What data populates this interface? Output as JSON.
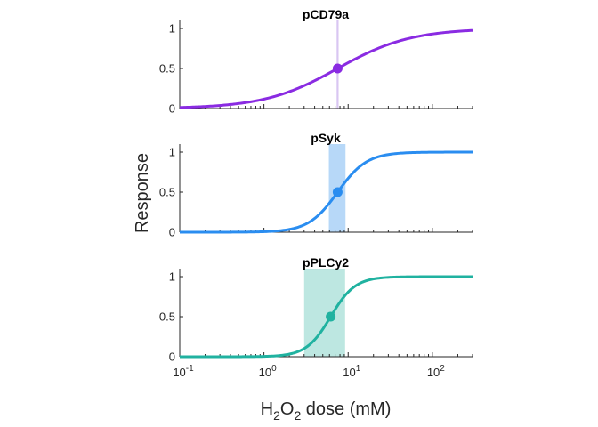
{
  "chart_data": {
    "type": "line",
    "x_scale": "log",
    "xlim": [
      0.1,
      300
    ],
    "xlabel_parts": {
      "a": "H",
      "sub1": "2",
      "b": "O",
      "sub2": "2",
      "c": " dose (mM)"
    },
    "ylabel": "Response",
    "x_ticks": [
      {
        "value": 0.1,
        "base": "10",
        "exp": "-1"
      },
      {
        "value": 1,
        "base": "10",
        "exp": "0"
      },
      {
        "value": 10,
        "base": "10",
        "exp": "1"
      },
      {
        "value": 100,
        "base": "10",
        "exp": "2"
      }
    ],
    "y_ticks": [
      "0",
      "0.5",
      "1"
    ],
    "ylim": [
      0,
      1
    ],
    "grid": false,
    "panels": [
      {
        "title": "pCD79a",
        "color": "#8a2be2",
        "ec50": 7.5,
        "hill": 1.0,
        "ci": [
          7.3,
          7.7
        ],
        "ci_color": "#d9c6f2"
      },
      {
        "title": "pSyk",
        "color": "#2a8df0",
        "ec50": 7.5,
        "hill": 2.5,
        "ci": [
          5.9,
          9.3
        ],
        "ci_color": "#b7d8f8"
      },
      {
        "title": "pPLCy2",
        "color": "#20b2a0",
        "ec50": 6.2,
        "hill": 3.0,
        "ci": [
          3.0,
          9.2
        ],
        "ci_color": "#bde7e1"
      }
    ]
  }
}
